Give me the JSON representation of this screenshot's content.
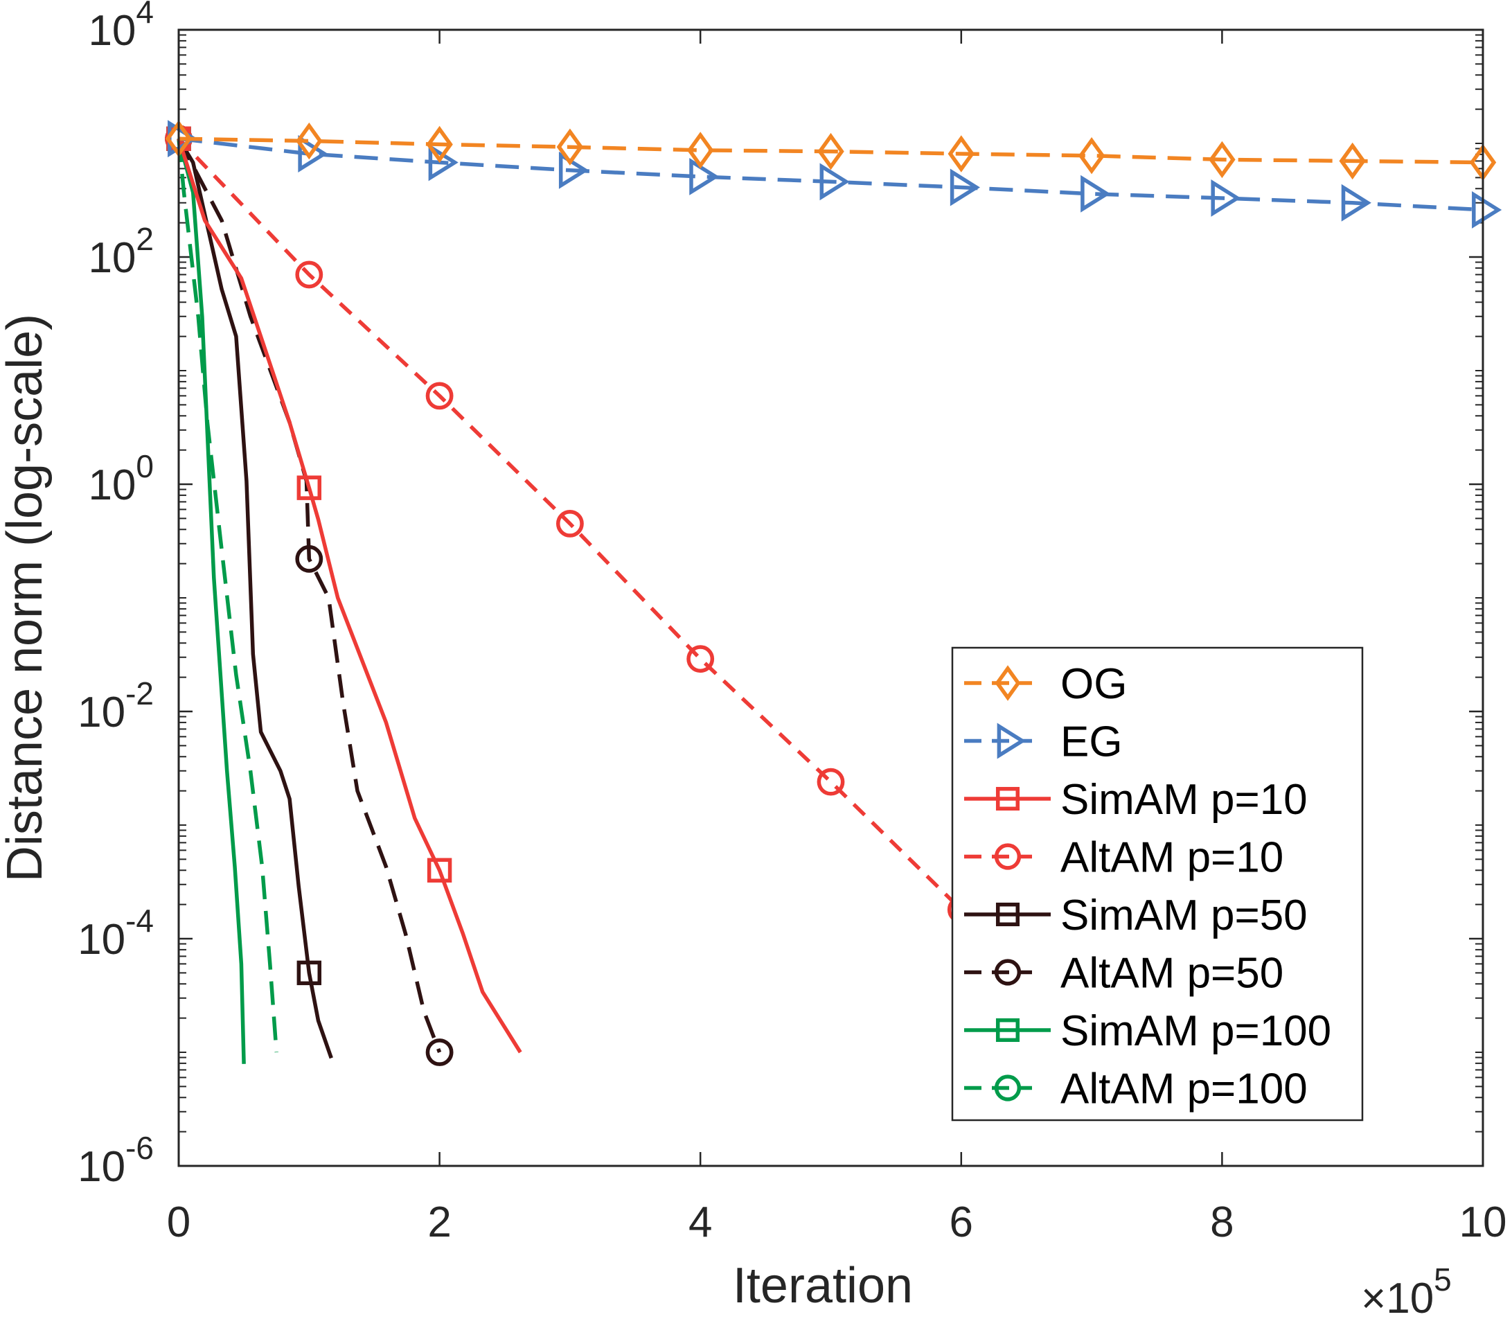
{
  "chart_data": {
    "type": "line",
    "title": "",
    "xlabel": "Iteration",
    "ylabel": "Distance norm (log-scale)",
    "x_multiplier_label": "×10",
    "x_multiplier_exponent": "5",
    "xlim": [
      0,
      10
    ],
    "ylim": [
      1e-06,
      10000.0
    ],
    "yscale": "log",
    "grid": false,
    "legend_position": "lower-right",
    "x_ticks": [
      "0",
      "2",
      "4",
      "6",
      "8",
      "10"
    ],
    "y_ticks": [
      {
        "base": "10",
        "exp": "4"
      },
      {
        "base": "10",
        "exp": "2"
      },
      {
        "base": "10",
        "exp": "0"
      },
      {
        "base": "10",
        "exp": "-2"
      },
      {
        "base": "10",
        "exp": "-4"
      },
      {
        "base": "10",
        "exp": "-6"
      }
    ],
    "series": [
      {
        "name": "OG",
        "color": "#F28522",
        "dash": "dashed",
        "marker": "diamond",
        "x": [
          0,
          1,
          2,
          3,
          4,
          5,
          6,
          7,
          8,
          9,
          10
        ],
        "y": [
          1100,
          1050,
          980,
          930,
          870,
          850,
          810,
          780,
          720,
          700,
          680
        ],
        "markers_at": [
          0,
          1,
          2,
          3,
          4,
          5,
          6,
          7,
          8,
          9,
          10
        ]
      },
      {
        "name": "EG",
        "color": "#4A7CC1",
        "dash": "dashed",
        "marker": "triangle-right",
        "x": [
          0,
          1,
          2,
          3,
          4,
          5,
          6,
          7,
          8,
          9,
          10
        ],
        "y": [
          1100,
          810,
          680,
          580,
          510,
          460,
          410,
          360,
          330,
          300,
          260
        ],
        "markers_at": [
          0,
          1,
          2,
          3,
          4,
          5,
          6,
          7,
          8,
          9,
          10
        ]
      },
      {
        "name": "SimAM p=10",
        "color": "#EE3B36",
        "dash": "solid",
        "marker": "square",
        "x": [
          0,
          0.2,
          0.48,
          0.85,
          1,
          1.07,
          1.22,
          1.59,
          1.81,
          2,
          2.18,
          2.33,
          2.62
        ],
        "y": [
          1100,
          210,
          65,
          3.5,
          0.93,
          0.49,
          0.1,
          0.008,
          0.00115,
          0.0004,
          0.00011,
          3.4e-05,
          1e-05
        ],
        "markers_at": [
          0,
          1,
          2
        ]
      },
      {
        "name": "AltAM p=10",
        "color": "#EE3B36",
        "dash": "dashed-fine",
        "marker": "circle",
        "x": [
          0,
          1,
          2,
          3,
          4,
          5,
          6
        ],
        "y": [
          1100,
          70,
          6,
          0.45,
          0.029,
          0.0024,
          0.00018
        ],
        "markers_at": [
          0,
          1,
          2,
          3,
          4,
          5,
          6
        ]
      },
      {
        "name": "SimAM p=50",
        "color": "#2E1212",
        "dash": "solid",
        "marker": "square",
        "x": [
          0,
          0.11,
          0.33,
          0.44,
          0.52,
          0.57,
          0.63,
          0.78,
          0.85,
          0.92,
          1,
          1.07,
          1.17
        ],
        "y": [
          1100,
          680,
          52,
          20,
          1.07,
          0.032,
          0.0066,
          0.003,
          0.0017,
          0.00029,
          5e-05,
          1.9e-05,
          8.9e-06
        ],
        "markers_at": [
          0,
          1
        ]
      },
      {
        "name": "AltAM p=50",
        "color": "#2E1212",
        "dash": "dashed",
        "marker": "circle",
        "x": [
          0,
          0.33,
          0.55,
          0.85,
          0.98,
          1,
          1.15,
          1.26,
          1.37,
          1.59,
          1.74,
          1.88,
          2
        ],
        "y": [
          1100,
          210,
          30,
          3.5,
          1.07,
          0.22,
          0.1,
          0.012,
          0.002,
          0.00043,
          0.00011,
          2.3e-05,
          1e-05
        ],
        "markers_at": [
          0,
          1,
          2
        ]
      },
      {
        "name": "SimAM p=100",
        "color": "#009B4A",
        "dash": "solid",
        "marker": "square",
        "x": [
          0,
          0.11,
          0.18,
          0.22,
          0.27,
          0.32,
          0.37,
          0.43,
          0.48,
          0.5
        ],
        "y": [
          1100,
          370,
          30,
          2.8,
          0.15,
          0.021,
          0.003,
          0.00043,
          6e-05,
          7.9e-06
        ],
        "markers_at": [
          0
        ]
      },
      {
        "name": "AltAM p=100",
        "color": "#009B4A",
        "dash": "dashed",
        "marker": "circle",
        "x": [
          0,
          0.04,
          0.15,
          0.22,
          0.32,
          0.44,
          0.55,
          0.64,
          0.7,
          0.75
        ],
        "y": [
          1100,
          370,
          30,
          3.5,
          0.33,
          0.021,
          0.003,
          0.00043,
          6e-05,
          1e-05
        ],
        "markers_at": [
          0
        ]
      }
    ]
  }
}
